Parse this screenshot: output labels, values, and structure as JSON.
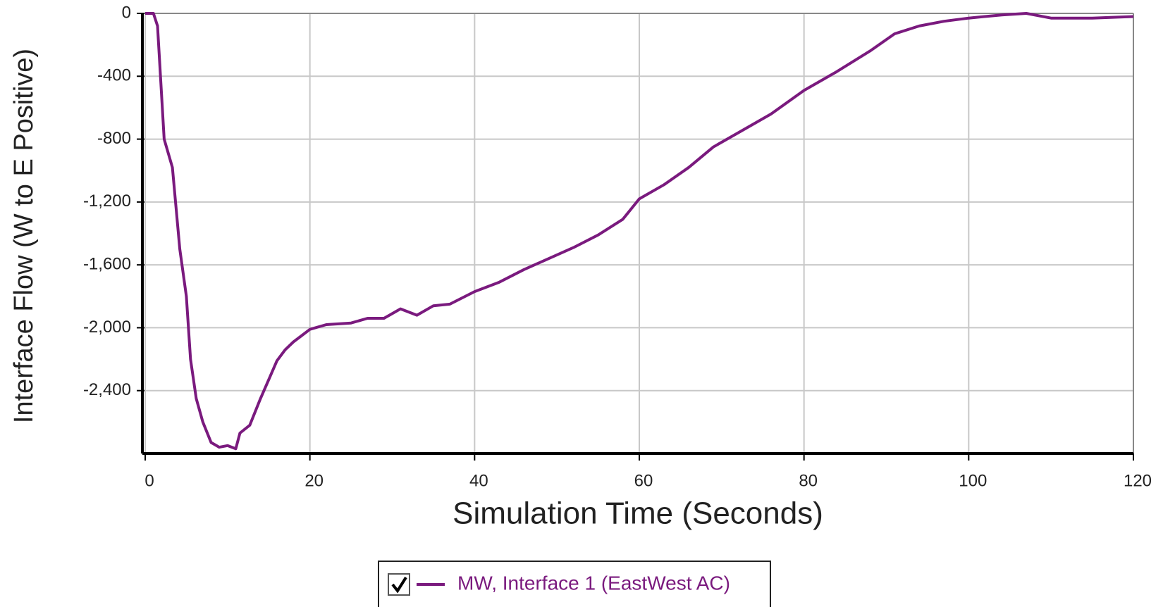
{
  "chart_data": {
    "type": "line",
    "xlabel": "Simulation Time (Seconds)",
    "ylabel": "Interface Flow (W to E Positive)",
    "xlim": [
      0,
      120
    ],
    "ylim": [
      -2800,
      0
    ],
    "xticks": [
      0,
      20,
      40,
      60,
      80,
      100,
      120
    ],
    "yticks": [
      0,
      -400,
      -800,
      {
        "value": -1200,
        "label": "-1,200"
      },
      {
        "value": -1600,
        "label": "-1,600"
      },
      {
        "value": -2000,
        "label": "-2,000"
      },
      {
        "value": -2400,
        "label": "-2,400"
      }
    ],
    "grid": true,
    "x": [
      0,
      1,
      1.5,
      2.3,
      3.3,
      4.2,
      5,
      5.5,
      6.2,
      7,
      8,
      9,
      10,
      11,
      11.5,
      12.7,
      14,
      15,
      16,
      17,
      18,
      19,
      20,
      22,
      25,
      27,
      29,
      31,
      33,
      35,
      37,
      40,
      43,
      46,
      49,
      52,
      55,
      58,
      60,
      63,
      66,
      69,
      72,
      76,
      80,
      84,
      88,
      91,
      94,
      97,
      100,
      104,
      107,
      110,
      115,
      120
    ],
    "series": [
      {
        "name": "MW, Interface 1 (EastWest AC)",
        "color": "#7a1a7e",
        "values": [
          0,
          0,
          -80,
          -800,
          -980,
          -1500,
          -1800,
          -2200,
          -2450,
          -2600,
          -2730,
          -2760,
          -2750,
          -2770,
          -2670,
          -2620,
          -2450,
          -2330,
          -2210,
          -2140,
          -2090,
          -2050,
          -2010,
          -1980,
          -1970,
          -1940,
          -1940,
          -1880,
          -1920,
          -1860,
          -1850,
          -1770,
          -1710,
          -1630,
          -1560,
          -1490,
          -1410,
          -1310,
          -1180,
          -1090,
          -980,
          -850,
          -760,
          -640,
          -490,
          -370,
          -240,
          -130,
          -80,
          -50,
          -30,
          -10,
          0,
          -30,
          -30,
          -20
        ]
      }
    ],
    "legend": "bottom"
  }
}
